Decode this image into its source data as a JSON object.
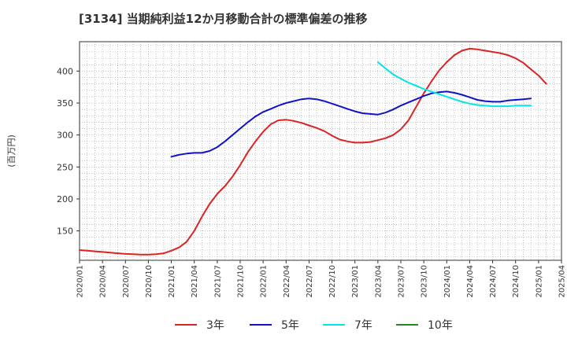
{
  "title": "[3134]  当期純利益12か月移動合計の標準偏差の推移",
  "chart_data": {
    "type": "line",
    "title": "[3134]  当期純利益12か月移動合計の標準偏差の推移",
    "ylabel": "(百万円)",
    "xlabel": "",
    "x_ticks": [
      "2020/01",
      "2020/04",
      "2020/07",
      "2020/10",
      "2021/01",
      "2021/04",
      "2021/07",
      "2021/10",
      "2022/01",
      "2022/04",
      "2022/07",
      "2022/10",
      "2023/01",
      "2023/04",
      "2023/07",
      "2023/10",
      "2024/01",
      "2024/04",
      "2024/07",
      "2024/10",
      "2025/01",
      "2025/04"
    ],
    "y_ticks": [
      150,
      200,
      250,
      300,
      350,
      400
    ],
    "ylim": [
      104,
      446
    ],
    "xlim_months": [
      0,
      63
    ],
    "grid": true,
    "legend_position": "bottom",
    "series": [
      {
        "name": "3年",
        "color": "#dd2222",
        "start_month": 0,
        "values": [
          120,
          119,
          118,
          117,
          116,
          115,
          114,
          113.5,
          113,
          113,
          113.5,
          115,
          119,
          124,
          133,
          150,
          172,
          192,
          208,
          220,
          235,
          253,
          273,
          290,
          305,
          317,
          323,
          324,
          322,
          319,
          315,
          311,
          306,
          299,
          293,
          290,
          288,
          288,
          289,
          292,
          295,
          300,
          309,
          323,
          344,
          365,
          384,
          401,
          414,
          425,
          432,
          435,
          434,
          432,
          430,
          428,
          425,
          420,
          413,
          403,
          393,
          380
        ]
      },
      {
        "name": "5年",
        "color": "#1111cc",
        "start_month": 12,
        "values": [
          266,
          269,
          271,
          272,
          272,
          275,
          281,
          290,
          300,
          310,
          320,
          329,
          336,
          341,
          346,
          350,
          353,
          356,
          357,
          356,
          353,
          349,
          345,
          341,
          337,
          334,
          333,
          332,
          335,
          340,
          346,
          351,
          356,
          361,
          365,
          367,
          368,
          366,
          363,
          359,
          355,
          353,
          352,
          352,
          354,
          355,
          356,
          357
        ]
      },
      {
        "name": "7年",
        "color": "#00e6e6",
        "start_month": 39,
        "values": [
          414,
          404,
          395,
          388,
          382,
          377,
          372,
          368,
          364,
          360,
          356,
          352,
          349,
          347,
          346,
          345,
          345,
          345,
          346,
          346,
          346
        ]
      },
      {
        "name": "10年",
        "color": "#228822",
        "start_month": 0,
        "values": []
      }
    ]
  }
}
